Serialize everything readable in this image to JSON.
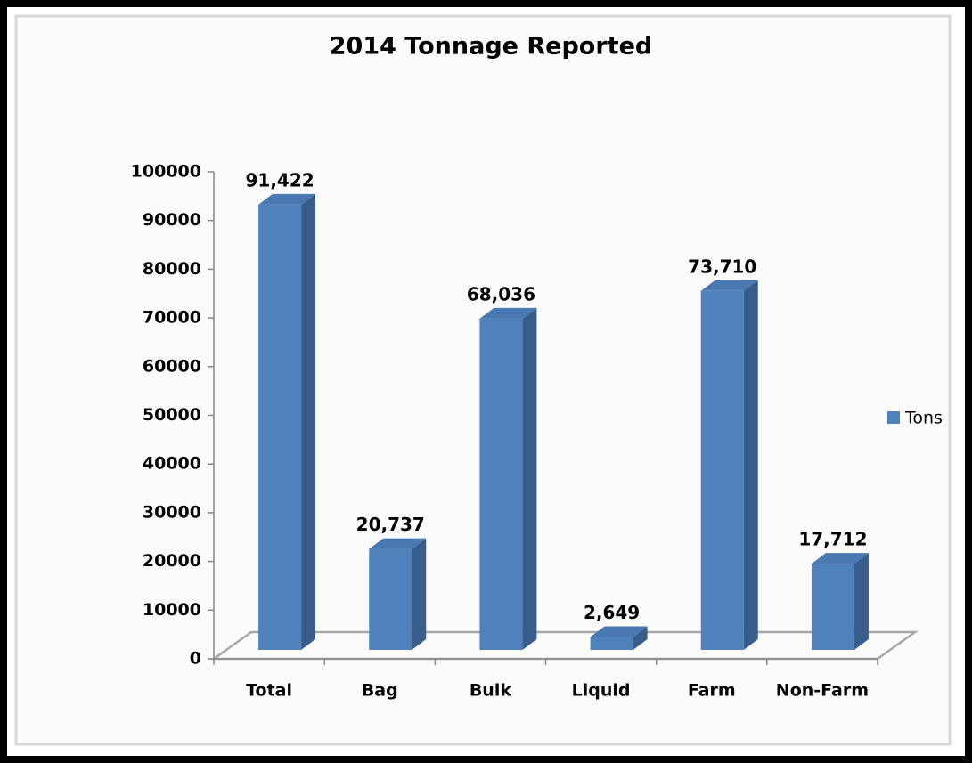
{
  "chart_data": {
    "type": "bar",
    "title": "2014 Tonnage Reported",
    "categories": [
      "Total",
      "Bag",
      "Bulk",
      "Liquid",
      "Farm",
      "Non-Farm"
    ],
    "series": [
      {
        "name": "Tons",
        "color": "#4f81bd",
        "values": [
          91422,
          20737,
          68036,
          2649,
          73710,
          17712
        ],
        "value_labels": [
          "91,422",
          "20,737",
          "68,036",
          "2,649",
          "73,710",
          "17,712"
        ]
      }
    ],
    "ylim": [
      0,
      100000
    ],
    "yticks": [
      0,
      10000,
      20000,
      30000,
      40000,
      50000,
      60000,
      70000,
      80000,
      90000,
      100000
    ],
    "legend": "right"
  }
}
